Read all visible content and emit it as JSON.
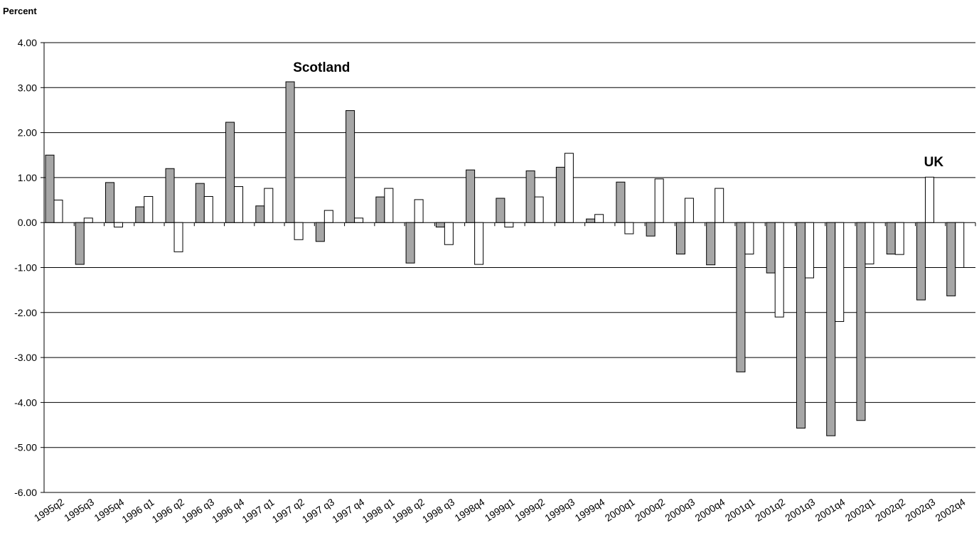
{
  "chart_data": {
    "type": "bar",
    "ylabel": "Percent",
    "ylim": [
      -6,
      4
    ],
    "ytick_step": 1,
    "grid": true,
    "categories": [
      "1995q2",
      "1995q3",
      "1995q4",
      "1996 q1",
      "1996 q2",
      "1996 q3",
      "1996 q4",
      "1997 q1",
      "1997 q2",
      "1997 q3",
      "1997 q4",
      "1998 q1",
      "1998 q2",
      "1998 q3",
      "1998q4",
      "1999q1",
      "1999q2",
      "1999q3",
      "1999q4",
      "2000q1",
      "2000q2",
      "2000q3",
      "2000q4",
      "2001q1",
      "2001q2",
      "2001q3",
      "2001q4",
      "2002q1",
      "2002q2",
      "2002q3",
      "2002q4"
    ],
    "series": [
      {
        "name": "Scotland",
        "color": "#a6a6a6",
        "values": [
          1.5,
          -0.93,
          0.89,
          0.35,
          1.2,
          0.87,
          2.23,
          0.37,
          3.13,
          -0.42,
          2.49,
          0.57,
          -0.9,
          -0.1,
          1.17,
          0.54,
          1.15,
          1.23,
          0.08,
          0.9,
          -0.3,
          -0.7,
          -0.94,
          -3.32,
          -1.12,
          -4.57,
          -4.74,
          -4.4,
          -0.7,
          -1.72,
          -1.63
        ]
      },
      {
        "name": "UK",
        "color": "#ffffff",
        "values": [
          0.5,
          0.1,
          -0.1,
          0.58,
          -0.65,
          0.58,
          0.8,
          0.76,
          -0.38,
          0.27,
          0.1,
          0.76,
          0.51,
          -0.49,
          -0.93,
          -0.1,
          0.57,
          1.54,
          0.18,
          -0.25,
          0.97,
          0.54,
          0.76,
          -0.7,
          -2.1,
          -1.23,
          -2.2,
          -0.92,
          -0.71,
          1.01,
          -1.0
        ]
      }
    ],
    "annotations": [
      {
        "text": "Scotland",
        "category_index": 8,
        "y": 3.35
      },
      {
        "text": "UK",
        "category_index": 29,
        "y": 1.25
      }
    ]
  }
}
